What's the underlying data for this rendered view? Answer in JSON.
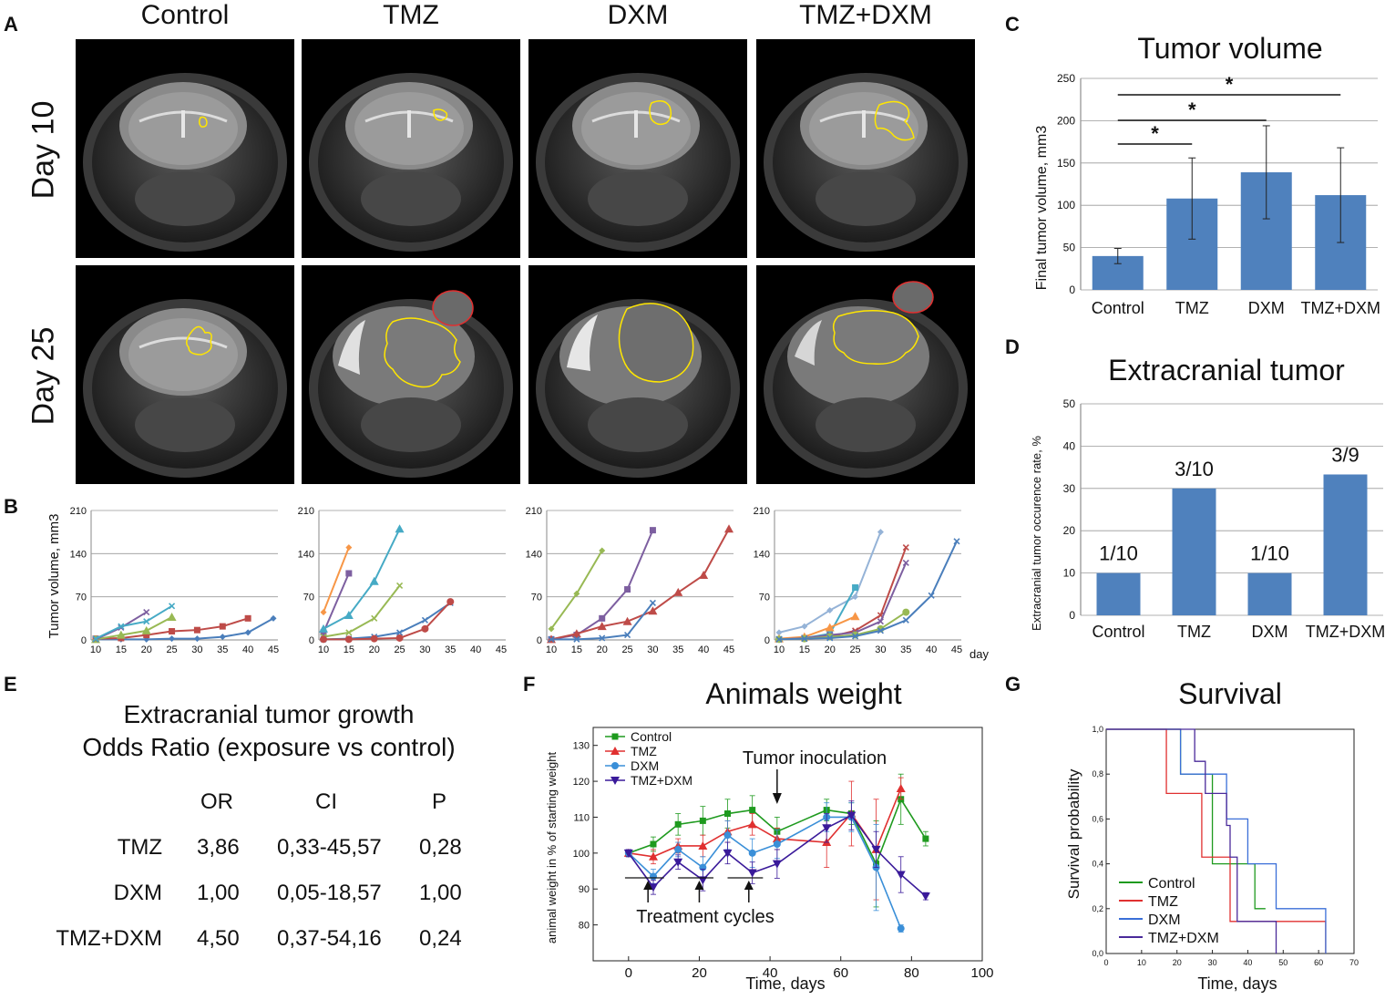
{
  "panel_letters": {
    "a": "A",
    "b": "B",
    "c": "C",
    "d": "D",
    "e": "E",
    "f": "F",
    "g": "G"
  },
  "panel_a": {
    "columns": [
      "Control",
      "TMZ",
      "DXM",
      "TMZ+DXM"
    ],
    "rows": [
      "Day 10",
      "Day 25"
    ]
  },
  "chart_data": [
    {
      "id": "B",
      "type": "line",
      "title": "",
      "ylabel": "Tumor volume, mm3",
      "xlabel": "day",
      "ylim": [
        0,
        210
      ],
      "yticks": [
        "0",
        "70",
        "140",
        "210"
      ],
      "xticks": [
        "10",
        "15",
        "20",
        "25",
        "30",
        "35",
        "40",
        "45"
      ],
      "groups": [
        {
          "name": "Control",
          "series": [
            {
              "color": "#4a7ebb",
              "x": [
                10,
                15,
                20,
                25,
                30,
                35,
                40,
                45
              ],
              "y": [
                1,
                1,
                1,
                2,
                2,
                5,
                12,
                35
              ]
            },
            {
              "color": "#be4b48",
              "x": [
                10,
                15,
                20,
                25,
                30,
                35,
                40
              ],
              "y": [
                2,
                3,
                8,
                14,
                16,
                22,
                35
              ]
            },
            {
              "color": "#98b954",
              "x": [
                10,
                15,
                20,
                25
              ],
              "y": [
                1,
                8,
                15,
                37
              ]
            },
            {
              "color": "#7d5fa0",
              "x": [
                10,
                15,
                20
              ],
              "y": [
                1,
                20,
                45
              ]
            },
            {
              "color": "#46aac5",
              "x": [
                10,
                15,
                20,
                25
              ],
              "y": [
                2,
                22,
                30,
                55
              ]
            }
          ]
        },
        {
          "name": "TMZ",
          "series": [
            {
              "color": "#f79646",
              "x": [
                10,
                15
              ],
              "y": [
                45,
                150
              ]
            },
            {
              "color": "#7d5fa0",
              "x": [
                10,
                15
              ],
              "y": [
                12,
                108
              ]
            },
            {
              "color": "#46aac5",
              "x": [
                10,
                15,
                20,
                25
              ],
              "y": [
                18,
                40,
                95,
                180
              ]
            },
            {
              "color": "#98b954",
              "x": [
                10,
                15,
                20,
                25
              ],
              "y": [
                5,
                12,
                35,
                88
              ]
            },
            {
              "color": "#4a7ebb",
              "x": [
                10,
                15,
                20,
                25,
                30,
                35
              ],
              "y": [
                1,
                2,
                5,
                12,
                32,
                60
              ]
            },
            {
              "color": "#be4b48",
              "x": [
                10,
                15,
                20,
                25,
                30,
                35
              ],
              "y": [
                1,
                1,
                2,
                3,
                18,
                62
              ]
            }
          ]
        },
        {
          "name": "DXM",
          "series": [
            {
              "color": "#98b954",
              "x": [
                10,
                15,
                20
              ],
              "y": [
                18,
                75,
                145
              ]
            },
            {
              "color": "#7d5fa0",
              "x": [
                10,
                15,
                20,
                25,
                30
              ],
              "y": [
                1,
                8,
                35,
                82,
                178
              ]
            },
            {
              "color": "#be4b48",
              "x": [
                10,
                15,
                20,
                25,
                30,
                35,
                40,
                45
              ],
              "y": [
                1,
                10,
                22,
                30,
                47,
                77,
                105,
                180
              ]
            },
            {
              "color": "#4a7ebb",
              "x": [
                10,
                15,
                20,
                25,
                30
              ],
              "y": [
                1,
                1,
                3,
                8,
                60
              ]
            }
          ]
        },
        {
          "name": "TMZ+DXM",
          "series": [
            {
              "color": "#95b3d7",
              "x": [
                10,
                15,
                20,
                25,
                30
              ],
              "y": [
                12,
                22,
                48,
                70,
                175
              ]
            },
            {
              "color": "#46aac5",
              "x": [
                10,
                15,
                20,
                25
              ],
              "y": [
                1,
                3,
                10,
                85
              ]
            },
            {
              "color": "#f79646",
              "x": [
                10,
                15,
                20,
                25
              ],
              "y": [
                2,
                5,
                20,
                38
              ]
            },
            {
              "color": "#be4b48",
              "x": [
                10,
                15,
                20,
                25,
                30,
                35
              ],
              "y": [
                1,
                2,
                5,
                15,
                40,
                150
              ]
            },
            {
              "color": "#7d5fa0",
              "x": [
                10,
                15,
                20,
                25,
                30,
                35
              ],
              "y": [
                1,
                3,
                8,
                12,
                30,
                125
              ]
            },
            {
              "color": "#98b954",
              "x": [
                10,
                15,
                20,
                25,
                30,
                35
              ],
              "y": [
                1,
                2,
                5,
                8,
                18,
                45
              ]
            },
            {
              "color": "#4a7ebb",
              "x": [
                10,
                15,
                20,
                25,
                30,
                35,
                40,
                45
              ],
              "y": [
                1,
                2,
                3,
                6,
                15,
                32,
                72,
                160
              ]
            }
          ]
        }
      ]
    },
    {
      "id": "C",
      "type": "bar",
      "title": "Tumor volume",
      "ylabel": "Final tumor volume, mm3",
      "categories": [
        "Control",
        "TMZ",
        "DXM",
        "TMZ+DXM"
      ],
      "values": [
        40,
        108,
        139,
        112
      ],
      "errors": [
        9,
        48,
        55,
        56
      ],
      "ylim": [
        0,
        250
      ],
      "yticks": [
        "0",
        "50",
        "100",
        "150",
        "200",
        "250"
      ],
      "significance": [
        {
          "from": "Control",
          "to": "TMZ",
          "label": "*"
        },
        {
          "from": "Control",
          "to": "DXM",
          "label": "*"
        },
        {
          "from": "Control",
          "to": "TMZ+DXM",
          "label": "*"
        }
      ],
      "color": "#4f81bd"
    },
    {
      "id": "D",
      "type": "bar",
      "title": "Extracranial tumor",
      "ylabel": "Extracranial tumor occurence rate, %",
      "categories": [
        "Control",
        "TMZ",
        "DXM",
        "TMZ+DXM"
      ],
      "values": [
        10,
        30,
        10,
        33.3
      ],
      "labels": [
        "1/10",
        "3/10",
        "1/10",
        "3/9"
      ],
      "ylim": [
        0,
        50
      ],
      "yticks": [
        "0",
        "10",
        "20",
        "30",
        "40",
        "50"
      ],
      "color": "#4f81bd"
    },
    {
      "id": "F",
      "type": "line",
      "title": "Animals weight",
      "ylabel": "animal weight in % of starting weight",
      "xlabel": "Time, days",
      "xlim": [
        -10,
        100
      ],
      "ylim": [
        70,
        135
      ],
      "xticks": [
        "0",
        "20",
        "40",
        "60",
        "80",
        "100"
      ],
      "yticks": [
        "80",
        "90",
        "100",
        "110",
        "120",
        "130"
      ],
      "annotations": {
        "inoculation": "Tumor inoculation",
        "treatment": "Treatment cycles"
      },
      "series": [
        {
          "name": "Control",
          "color": "#1e9a1e",
          "marker": "square",
          "x": [
            0,
            7,
            14,
            21,
            28,
            35,
            42,
            56,
            63,
            70,
            77,
            84
          ],
          "y": [
            100,
            102.5,
            108,
            109,
            111,
            112,
            106,
            112,
            111,
            97,
            115,
            104
          ],
          "err": [
            1,
            2,
            3,
            4,
            4,
            4,
            4,
            3,
            3,
            12,
            7,
            2
          ]
        },
        {
          "name": "TMZ",
          "color": "#e03030",
          "marker": "triangle",
          "x": [
            0,
            7,
            14,
            21,
            28,
            35,
            42,
            56,
            63,
            70,
            77
          ],
          "y": [
            100,
            99,
            102,
            102,
            106,
            108,
            104,
            103,
            111,
            101,
            118
          ],
          "err": [
            1,
            2,
            2,
            3,
            3,
            3,
            3,
            7,
            9,
            14,
            3
          ]
        },
        {
          "name": "DXM",
          "color": "#3a8fd8",
          "marker": "circle",
          "x": [
            0,
            7,
            14,
            21,
            28,
            35,
            42,
            56,
            63,
            70,
            77
          ],
          "y": [
            100,
            93.5,
            101,
            96,
            105,
            100,
            102.5,
            110,
            110,
            96,
            79
          ],
          "err": [
            1,
            2,
            2,
            3,
            4,
            4,
            4,
            4,
            4,
            12,
            1
          ]
        },
        {
          "name": "TMZ+DXM",
          "color": "#3a1a9a",
          "marker": "tri-down",
          "x": [
            0,
            7,
            14,
            21,
            28,
            35,
            42,
            56,
            63,
            70,
            77,
            84
          ],
          "y": [
            100,
            90.5,
            97.5,
            92.5,
            100,
            94.5,
            97,
            107,
            110.5,
            101,
            94,
            88
          ],
          "err": [
            1,
            2,
            2,
            3,
            3,
            3,
            4,
            4,
            4,
            5,
            5,
            1
          ]
        }
      ]
    },
    {
      "id": "G",
      "type": "line",
      "title": "Survival",
      "ylabel": "Survival probability",
      "xlabel": "Time, days",
      "xlim": [
        0,
        70
      ],
      "ylim": [
        0,
        1.0
      ],
      "xticks": [
        "0",
        "10",
        "20",
        "30",
        "40",
        "50",
        "60",
        "70"
      ],
      "yticks": [
        "0,0",
        "0,2",
        "0,4",
        "0,6",
        "0,8",
        "1,0"
      ],
      "series": [
        {
          "name": "Control",
          "color": "#1e9a1e",
          "x": [
            0,
            20,
            21,
            28,
            30,
            38,
            42,
            45
          ],
          "y": [
            1.0,
            1.0,
            0.8,
            0.8,
            0.4,
            0.4,
            0.2,
            0.2
          ]
        },
        {
          "name": "TMZ",
          "color": "#e03030",
          "x": [
            0,
            17,
            17,
            27,
            27,
            35,
            35,
            62,
            62
          ],
          "y": [
            1.0,
            1.0,
            0.714,
            0.714,
            0.43,
            0.43,
            0.143,
            0.143,
            0.0
          ]
        },
        {
          "name": "DXM",
          "color": "#3a6fd8",
          "x": [
            0,
            21,
            21,
            30,
            30,
            34,
            34,
            40,
            40,
            48,
            48,
            62,
            62
          ],
          "y": [
            1.0,
            1.0,
            0.8,
            0.8,
            0.8,
            0.8,
            0.6,
            0.6,
            0.4,
            0.4,
            0.2,
            0.2,
            0.0
          ]
        },
        {
          "name": "TMZ+DXM",
          "color": "#4a2a9a",
          "x": [
            0,
            25,
            25,
            28,
            28,
            34,
            34,
            35,
            35,
            37,
            37,
            48,
            48
          ],
          "y": [
            1.0,
            1.0,
            0.857,
            0.857,
            0.714,
            0.714,
            0.571,
            0.571,
            0.43,
            0.43,
            0.143,
            0.143,
            0.0
          ]
        }
      ]
    }
  ],
  "panel_e": {
    "title_line1": "Extracranial tumor growth",
    "title_line2": "Odds Ratio (exposure vs control)",
    "headers": [
      "OR",
      "CI",
      "P"
    ],
    "rows": [
      {
        "label": "TMZ",
        "or": "3,86",
        "ci": "0,33-45,57",
        "p": "0,28"
      },
      {
        "label": "DXM",
        "or": "1,00",
        "ci": "0,05-18,57",
        "p": "1,00"
      },
      {
        "label": "TMZ+DXM",
        "or": "4,50",
        "ci": "0,37-54,16",
        "p": "0,24"
      }
    ]
  }
}
